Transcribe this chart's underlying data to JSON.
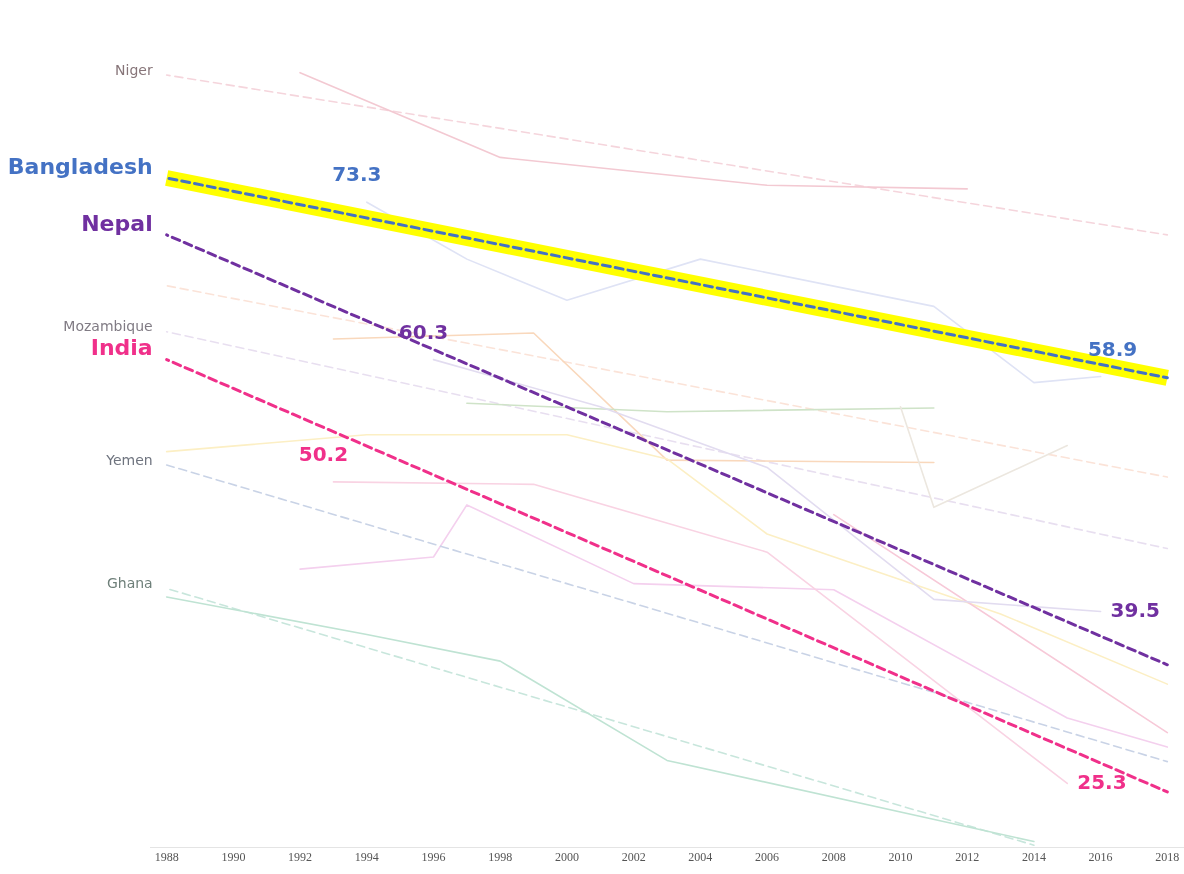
{
  "chart_data": {
    "type": "line",
    "xlim": [
      1987.5,
      2018.5
    ],
    "xticks": [
      1988,
      1990,
      1992,
      1994,
      1996,
      1998,
      2000,
      2002,
      2004,
      2006,
      2008,
      2010,
      2012,
      2014,
      2016,
      2018
    ],
    "tick_labels": "x",
    "grid": false,
    "legend": false,
    "marker": "none",
    "series": [
      {
        "name": "Niger",
        "color": "#f5d5dc",
        "line_style": "dashed",
        "x": [
          1988,
          2018
        ],
        "values": [
          83.8,
          70.6
        ]
      },
      {
        "color": "#f3c9d2",
        "line_style": "solid",
        "x": [
          1992,
          1998,
          2006,
          2012
        ],
        "values": [
          84.0,
          77.0,
          74.7,
          74.4
        ]
      },
      {
        "color": "#fbe3d8",
        "line_style": "dashed",
        "x": [
          1988,
          2018
        ],
        "values": [
          66.4,
          50.6
        ]
      },
      {
        "name": "Mozambique",
        "color": "#e8dff0",
        "line_style": "dashed",
        "x": [
          1988,
          2018
        ],
        "values": [
          62.6,
          44.7
        ]
      },
      {
        "color": "#f9d8bc",
        "line_style": "solid",
        "x": [
          1993,
          1999,
          2003,
          2011
        ],
        "values": [
          62.0,
          62.5,
          52.0,
          51.8
        ]
      },
      {
        "color": "#cfe3c8",
        "line_style": "solid",
        "x": [
          1997,
          2003,
          2011
        ],
        "values": [
          56.7,
          56.0,
          56.3
        ]
      },
      {
        "color": "#fcefc4",
        "line_style": "solid",
        "x": [
          1988,
          1994,
          2000,
          2003,
          2006,
          2013,
          2018
        ],
        "values": [
          52.7,
          54.1,
          54.1,
          52.1,
          45.9,
          39.3,
          33.5
        ]
      },
      {
        "color": "#ece7df",
        "line_style": "solid",
        "x": [
          2010,
          2011,
          2015
        ],
        "values": [
          56.4,
          48.1,
          53.2
        ]
      },
      {
        "color": "#f4d0ee",
        "line_style": "solid",
        "x": [
          1992,
          1996,
          1997,
          2002,
          2008,
          2015,
          2018
        ],
        "values": [
          43.0,
          44.0,
          48.3,
          41.8,
          41.3,
          30.7,
          28.3
        ]
      },
      {
        "color": "#f7c9d8",
        "line_style": "solid",
        "x": [
          2008,
          2018
        ],
        "values": [
          47.5,
          29.5
        ]
      },
      {
        "name": "Yemen",
        "color": "#c9d3e6",
        "line_style": "dashed",
        "x": [
          1988,
          2018
        ],
        "values": [
          51.6,
          27.1
        ]
      },
      {
        "name": "Ghana",
        "color": "#c8e6dc",
        "line_style": "dashed",
        "x": [
          1988,
          2014
        ],
        "values": [
          41.4,
          20.2
        ]
      },
      {
        "color": "#bfe3d3",
        "line_style": "solid",
        "x": [
          1988,
          1994,
          1998,
          2003,
          2014
        ],
        "values": [
          40.7,
          37.6,
          35.4,
          27.2,
          20.5
        ]
      },
      {
        "color": "#dfe3f5",
        "line_style": "solid",
        "x": [
          1994,
          1997,
          2000,
          2004,
          2011,
          2014,
          2016
        ],
        "values": [
          73.3,
          68.6,
          65.2,
          68.6,
          64.7,
          58.4,
          58.9
        ],
        "value_labels": [
          "73.3",
          null,
          null,
          null,
          null,
          null,
          "58.9"
        ]
      },
      {
        "color": "#e2dcf0",
        "line_style": "solid",
        "x": [
          1996,
          2001,
          2006,
          2011,
          2016
        ],
        "values": [
          60.3,
          56.4,
          51.4,
          40.5,
          39.5
        ],
        "value_labels": [
          "60.3",
          null,
          null,
          null,
          "39.5"
        ]
      },
      {
        "color": "#f9d3e3",
        "line_style": "solid",
        "x": [
          1993,
          1999,
          2006,
          2015
        ],
        "values": [
          50.2,
          50.0,
          44.4,
          25.3
        ],
        "value_labels": [
          "50.2",
          null,
          null,
          "25.3"
        ]
      },
      {
        "color": "#ffff00",
        "line_style": "solid",
        "x": [
          1988,
          2018
        ],
        "values": [
          75.3,
          58.8
        ]
      },
      {
        "name": "Bangladesh",
        "color": "#4472c4",
        "line_style": "dashed",
        "x": [
          1988,
          2018
        ],
        "values": [
          75.3,
          58.8
        ]
      },
      {
        "name": "Nepal",
        "color": "#7030a0",
        "line_style": "dashed",
        "x": [
          1988,
          2018
        ],
        "values": [
          70.6,
          35.1
        ]
      },
      {
        "name": "India",
        "color": "#f0308a",
        "line_style": "dashed",
        "x": [
          1988,
          2018
        ],
        "values": [
          60.3,
          24.6
        ]
      }
    ]
  }
}
